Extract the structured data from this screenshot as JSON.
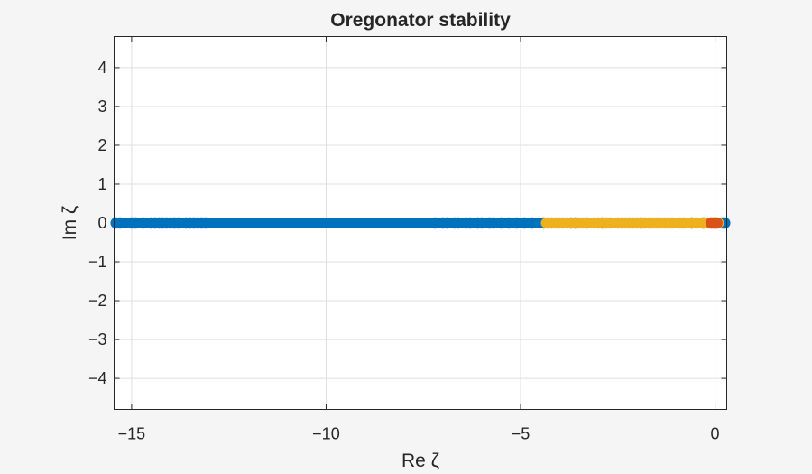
{
  "chart_data": {
    "type": "scatter",
    "title": "Oregonator stability",
    "xlabel": "Re ζ",
    "ylabel": "Im ζ",
    "xlim": [
      -15.45,
      0.3
    ],
    "ylim": [
      -4.8,
      4.8
    ],
    "xticks": [
      -15,
      -10,
      -5,
      0
    ],
    "yticks": [
      -4,
      -3,
      -2,
      -1,
      0,
      1,
      2,
      3,
      4
    ],
    "grid": true,
    "legend": "none",
    "marker": "circle",
    "series": [
      {
        "color": "#0072BD",
        "x_range": [
          -15.4,
          0.25
        ],
        "y": 0,
        "x": [
          -15.4,
          -15.3,
          -15.0,
          -14.9,
          -14.7,
          -14.5,
          -14.4,
          -14.3,
          -14.2,
          -14.1,
          -14.0,
          -13.9,
          -13.8,
          -13.6,
          -13.5,
          -13.4,
          -13.3,
          -13.2,
          -13.1,
          -7.2,
          -7.0,
          -6.9,
          -6.7,
          -6.6,
          -6.4,
          -6.3,
          -6.1,
          -6.0,
          -5.8,
          -5.7,
          -5.5,
          -5.3,
          -5.1,
          -4.9,
          -4.7,
          -4.4,
          -3.7,
          -3.6,
          -3.3,
          -2.9,
          -1.9,
          -0.6,
          -0.3,
          0.0,
          0.2,
          0.25
        ]
      },
      {
        "color": "#EDB120",
        "x_range": [
          -4.35,
          0.1
        ],
        "y": 0,
        "x": [
          -4.3,
          -4.2,
          -4.1,
          -4.0,
          -3.9,
          -3.8,
          -3.6,
          -3.5,
          -3.4,
          -3.1,
          -3.0,
          -2.9,
          -2.8,
          -2.7,
          -2.5,
          -2.4,
          -2.3,
          -2.2,
          -2.1,
          -2.0,
          -1.9,
          -1.8,
          -1.7,
          -1.6,
          -1.5,
          -1.4,
          -1.3,
          -1.2,
          -1.1,
          -0.9,
          -0.8,
          -0.6,
          -0.5,
          -0.3,
          -0.2,
          -0.1,
          0.0
        ]
      },
      {
        "color": "#D95319",
        "x_range": [
          -0.12,
          0.05
        ],
        "y": 0,
        "x": [
          -0.1,
          -0.05,
          0.0,
          0.05
        ]
      }
    ]
  }
}
